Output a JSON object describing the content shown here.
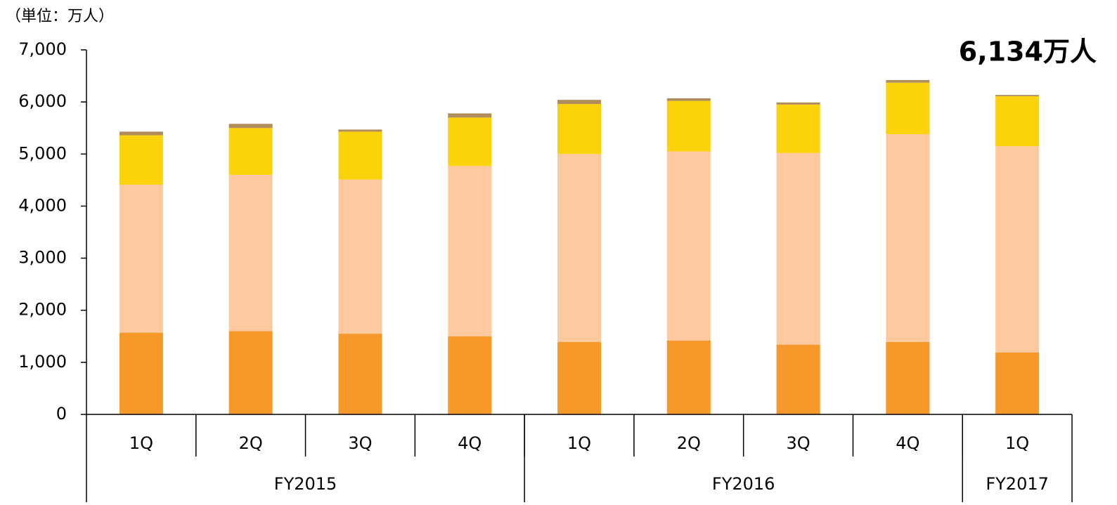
{
  "chart_data": {
    "type": "stacked_bar",
    "unit_label": "（単位：万人）",
    "annotation": "6,134万人",
    "categories": [
      "1Q",
      "2Q",
      "3Q",
      "4Q",
      "1Q",
      "2Q",
      "3Q",
      "4Q",
      "1Q"
    ],
    "groups": [
      {
        "label": "FY2015",
        "count": 4
      },
      {
        "label": "FY2016",
        "count": 4
      },
      {
        "label": "FY2017",
        "count": 1
      }
    ],
    "series": [
      {
        "color": "#f7992a",
        "values": [
          1570,
          1600,
          1550,
          1500,
          1390,
          1420,
          1340,
          1390,
          1190
        ]
      },
      {
        "color": "#ffc9a0",
        "values": [
          2840,
          3000,
          2960,
          3270,
          3610,
          3630,
          3680,
          3990,
          3960
        ]
      },
      {
        "color": "#fcd20a",
        "values": [
          950,
          900,
          920,
          930,
          960,
          970,
          930,
          990,
          960
        ]
      },
      {
        "color": "#b08c5a",
        "values": [
          70,
          80,
          40,
          80,
          80,
          50,
          40,
          50,
          24
        ]
      }
    ],
    "ylim": [
      0,
      7000
    ],
    "yticks": [
      0,
      {
        "value": 1000,
        "label": "1,000"
      },
      {
        "value": 2000,
        "label": "2,000"
      },
      {
        "value": 3000,
        "label": "3,000"
      },
      {
        "value": 4000,
        "label": "4,000"
      },
      {
        "value": 5000,
        "label": "5,000"
      },
      {
        "value": 6000,
        "label": "6,000"
      },
      {
        "value": 7000,
        "label": "7,000"
      }
    ],
    "grid": false
  }
}
